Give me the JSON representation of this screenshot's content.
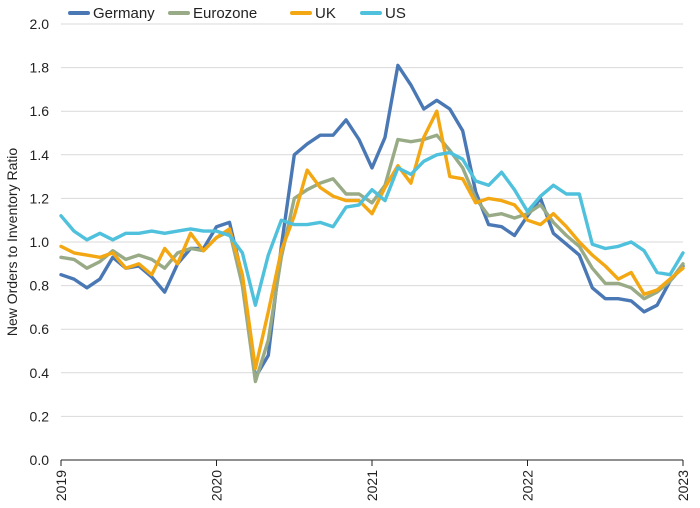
{
  "chart_data": {
    "type": "line",
    "ylabel": "New Orders to Inventory Ratio",
    "ylim": [
      0,
      2.0
    ],
    "yticks": [
      0.0,
      0.2,
      0.4,
      0.6,
      0.8,
      1.0,
      1.2,
      1.4,
      1.6,
      1.8,
      2.0
    ],
    "ytick_labels": [
      "0.0",
      "0.2",
      "0.4",
      "0.6",
      "0.8",
      "1.0",
      "1.2",
      "1.4",
      "1.6",
      "1.8",
      "2.0"
    ],
    "xlim": [
      2019,
      2023
    ],
    "xticks": [
      2019,
      2020,
      2021,
      2022,
      2023
    ],
    "xtick_labels": [
      "2019",
      "2020",
      "2021",
      "2022",
      "2023"
    ],
    "grid": "horizontal",
    "legend_position": "top",
    "series": [
      {
        "name": "Germany",
        "color": "#4a78b5",
        "x": [
          2019.0,
          2019.0833,
          2019.1667,
          2019.25,
          2019.3333,
          2019.4167,
          2019.5,
          2019.5833,
          2019.6667,
          2019.75,
          2019.8333,
          2019.9167,
          2020.0,
          2020.0833,
          2020.1667,
          2020.25,
          2020.3333,
          2020.4167,
          2020.5,
          2020.5833,
          2020.6667,
          2020.75,
          2020.8333,
          2020.9167,
          2021.0,
          2021.0833,
          2021.1667,
          2021.25,
          2021.3333,
          2021.4167,
          2021.5,
          2021.5833,
          2021.6667,
          2021.75,
          2021.8333,
          2021.9167,
          2022.0,
          2022.0833,
          2022.1667,
          2022.25,
          2022.3333,
          2022.4167,
          2022.5,
          2022.5833,
          2022.6667,
          2022.75,
          2022.8333,
          2022.9167,
          2023.0
        ],
        "values": [
          0.85,
          0.83,
          0.79,
          0.83,
          0.93,
          0.88,
          0.89,
          0.84,
          0.77,
          0.9,
          0.97,
          0.97,
          1.07,
          1.09,
          0.84,
          0.38,
          0.48,
          0.98,
          1.4,
          1.45,
          1.49,
          1.49,
          1.56,
          1.47,
          1.34,
          1.48,
          1.81,
          1.72,
          1.61,
          1.65,
          1.61,
          1.51,
          1.23,
          1.08,
          1.07,
          1.03,
          1.12,
          1.2,
          1.04,
          0.99,
          0.94,
          0.79,
          0.74,
          0.74,
          0.73,
          0.68,
          0.71,
          0.82,
          0.89
        ]
      },
      {
        "name": "Eurozone",
        "color": "#98ab86",
        "x": [
          2019.0,
          2019.0833,
          2019.1667,
          2019.25,
          2019.3333,
          2019.4167,
          2019.5,
          2019.5833,
          2019.6667,
          2019.75,
          2019.8333,
          2019.9167,
          2020.0,
          2020.0833,
          2020.1667,
          2020.25,
          2020.3333,
          2020.4167,
          2020.5,
          2020.5833,
          2020.6667,
          2020.75,
          2020.8333,
          2020.9167,
          2021.0,
          2021.0833,
          2021.1667,
          2021.25,
          2021.3333,
          2021.4167,
          2021.5,
          2021.5833,
          2021.6667,
          2021.75,
          2021.8333,
          2021.9167,
          2022.0,
          2022.0833,
          2022.1667,
          2022.25,
          2022.3333,
          2022.4167,
          2022.5,
          2022.5833,
          2022.6667,
          2022.75,
          2022.8333,
          2022.9167,
          2023.0
        ],
        "values": [
          0.93,
          0.92,
          0.88,
          0.91,
          0.96,
          0.92,
          0.94,
          0.92,
          0.88,
          0.95,
          0.97,
          0.96,
          1.02,
          1.05,
          0.8,
          0.36,
          0.55,
          0.93,
          1.2,
          1.24,
          1.27,
          1.29,
          1.22,
          1.22,
          1.18,
          1.26,
          1.47,
          1.46,
          1.47,
          1.49,
          1.42,
          1.34,
          1.2,
          1.12,
          1.13,
          1.11,
          1.13,
          1.17,
          1.09,
          1.03,
          0.98,
          0.88,
          0.81,
          0.81,
          0.79,
          0.74,
          0.77,
          0.82,
          0.9
        ]
      },
      {
        "name": "UK",
        "color": "#f3a712",
        "x": [
          2019.0,
          2019.0833,
          2019.1667,
          2019.25,
          2019.3333,
          2019.4167,
          2019.5,
          2019.5833,
          2019.6667,
          2019.75,
          2019.8333,
          2019.9167,
          2020.0,
          2020.0833,
          2020.1667,
          2020.25,
          2020.3333,
          2020.4167,
          2020.5,
          2020.5833,
          2020.6667,
          2020.75,
          2020.8333,
          2020.9167,
          2021.0,
          2021.0833,
          2021.1667,
          2021.25,
          2021.3333,
          2021.4167,
          2021.5,
          2021.5833,
          2021.6667,
          2021.75,
          2021.8333,
          2021.9167,
          2022.0,
          2022.0833,
          2022.1667,
          2022.25,
          2022.3333,
          2022.4167,
          2022.5,
          2022.5833,
          2022.6667,
          2022.75,
          2022.8333,
          2022.9167,
          2023.0
        ],
        "values": [
          0.98,
          0.95,
          0.94,
          0.93,
          0.95,
          0.88,
          0.9,
          0.85,
          0.97,
          0.9,
          1.04,
          0.96,
          1.02,
          1.06,
          0.85,
          0.42,
          0.68,
          0.96,
          1.12,
          1.33,
          1.25,
          1.21,
          1.19,
          1.19,
          1.13,
          1.25,
          1.35,
          1.27,
          1.48,
          1.6,
          1.3,
          1.29,
          1.18,
          1.2,
          1.19,
          1.17,
          1.1,
          1.08,
          1.13,
          1.07,
          1.0,
          0.94,
          0.89,
          0.83,
          0.86,
          0.76,
          0.78,
          0.83,
          0.88
        ]
      },
      {
        "name": "US",
        "color": "#4fc1dc",
        "x": [
          2019.0,
          2019.0833,
          2019.1667,
          2019.25,
          2019.3333,
          2019.4167,
          2019.5,
          2019.5833,
          2019.6667,
          2019.75,
          2019.8333,
          2019.9167,
          2020.0,
          2020.0833,
          2020.1667,
          2020.25,
          2020.3333,
          2020.4167,
          2020.5,
          2020.5833,
          2020.6667,
          2020.75,
          2020.8333,
          2020.9167,
          2021.0,
          2021.0833,
          2021.1667,
          2021.25,
          2021.3333,
          2021.4167,
          2021.5,
          2021.5833,
          2021.6667,
          2021.75,
          2021.8333,
          2021.9167,
          2022.0,
          2022.0833,
          2022.1667,
          2022.25,
          2022.3333,
          2022.4167,
          2022.5,
          2022.5833,
          2022.6667,
          2022.75,
          2022.8333,
          2022.9167,
          2023.0
        ],
        "values": [
          1.12,
          1.05,
          1.01,
          1.04,
          1.01,
          1.04,
          1.04,
          1.05,
          1.04,
          1.05,
          1.06,
          1.05,
          1.05,
          1.03,
          0.95,
          0.71,
          0.94,
          1.1,
          1.08,
          1.08,
          1.09,
          1.07,
          1.16,
          1.17,
          1.24,
          1.19,
          1.34,
          1.31,
          1.37,
          1.4,
          1.41,
          1.38,
          1.28,
          1.26,
          1.32,
          1.24,
          1.14,
          1.21,
          1.26,
          1.22,
          1.22,
          0.99,
          0.97,
          0.98,
          1.0,
          0.96,
          0.86,
          0.85,
          0.95
        ]
      }
    ]
  }
}
